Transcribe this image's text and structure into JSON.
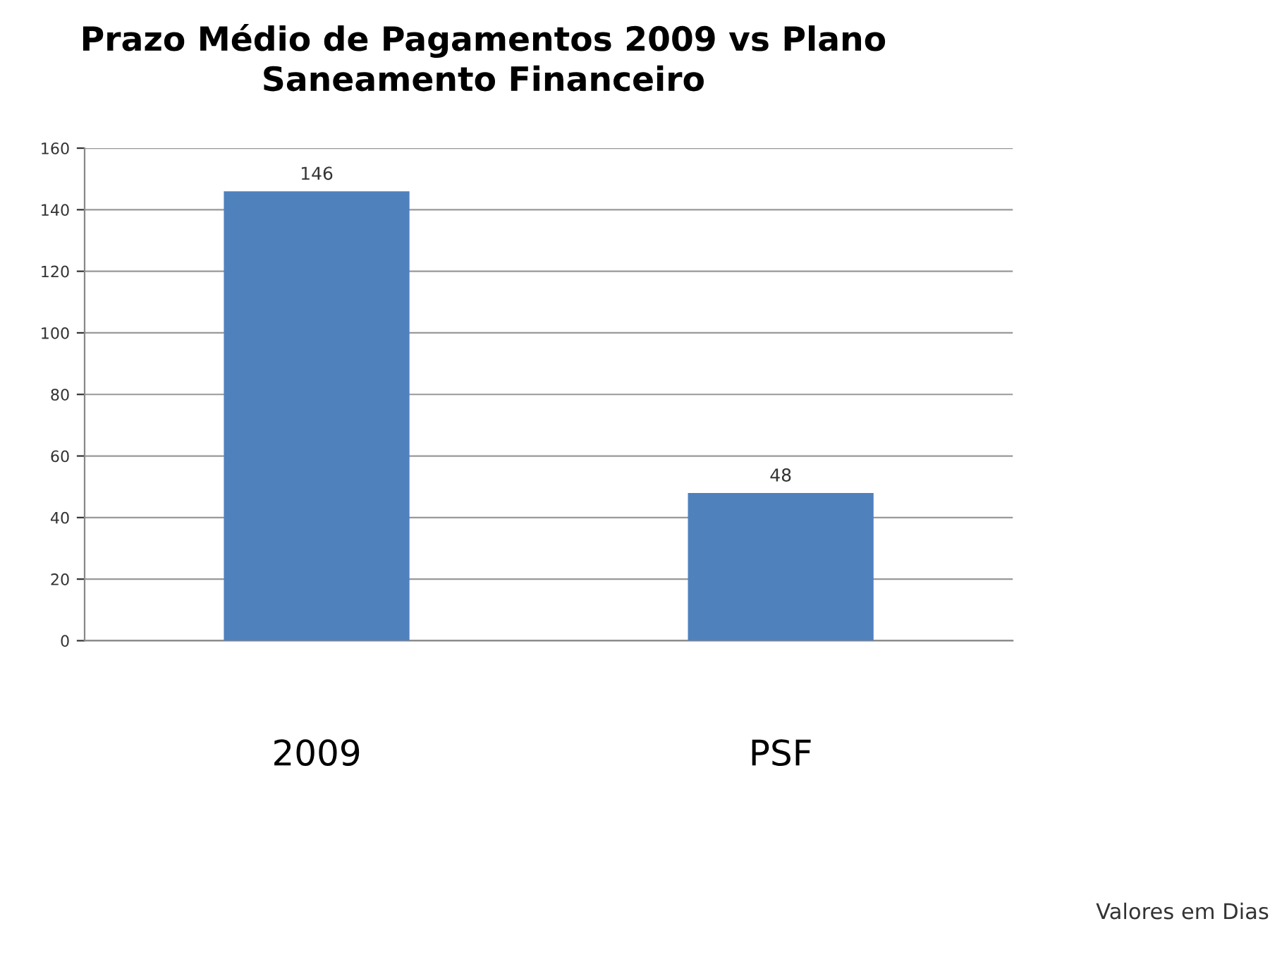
{
  "chart_data": {
    "type": "bar",
    "title": "Prazo Médio de Pagamentos 2009 vs Plano\nSaneamento Financeiro",
    "categories": [
      "2009",
      "PSF"
    ],
    "values": [
      146,
      48
    ],
    "color": "#4f81bd",
    "ylim": [
      0,
      160
    ],
    "yticks": [
      0,
      20,
      40,
      60,
      80,
      100,
      120,
      140,
      160
    ],
    "grid": "y",
    "data_labels": true,
    "annotations": [
      "Valores em Dias"
    ]
  }
}
